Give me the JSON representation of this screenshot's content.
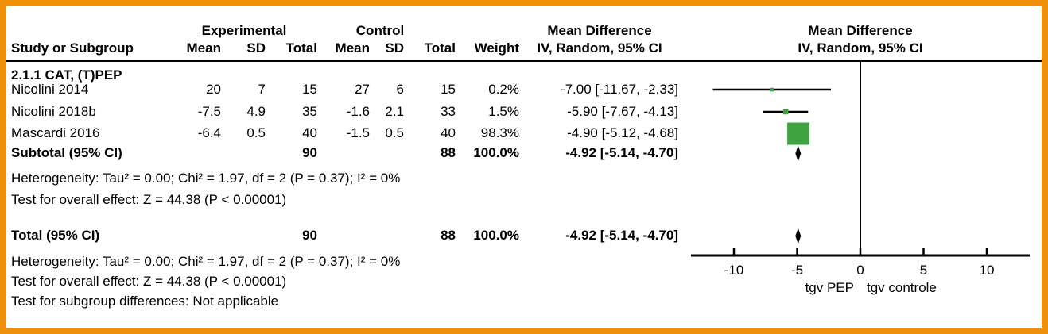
{
  "table": {
    "group_headers": {
      "experimental": "Experimental",
      "control": "Control"
    },
    "columns": {
      "study": "Study or Subgroup",
      "mean": "Mean",
      "sd": "SD",
      "total": "Total",
      "weight": "Weight",
      "md_line1": "Mean Difference",
      "md_line2": "IV, Random, 95% CI"
    },
    "subgroup_label": "2.1.1 CAT, (T)PEP",
    "rows": [
      {
        "study": "Nicolini 2014",
        "mean_exp": "20",
        "sd_exp": "7",
        "total_exp": "15",
        "mean_ctl": "27",
        "sd_ctl": "6",
        "total_ctl": "15",
        "weight": "0.2%",
        "md_ci": "-7.00 [-11.67, -2.33]"
      },
      {
        "study": "Nicolini 2018b",
        "mean_exp": "-7.5",
        "sd_exp": "4.9",
        "total_exp": "35",
        "mean_ctl": "-1.6",
        "sd_ctl": "2.1",
        "total_ctl": "33",
        "weight": "1.5%",
        "md_ci": "-5.90 [-7.67, -4.13]"
      },
      {
        "study": "Mascardi 2016",
        "mean_exp": "-6.4",
        "sd_exp": "0.5",
        "total_exp": "40",
        "mean_ctl": "-1.5",
        "sd_ctl": "0.5",
        "total_ctl": "40",
        "weight": "98.3%",
        "md_ci": "-4.90 [-5.12, -4.68]"
      }
    ],
    "subtotal": {
      "label": "Subtotal (95% CI)",
      "total_exp": "90",
      "total_ctl": "88",
      "weight": "100.0%",
      "md_ci": "-4.92 [-5.14, -4.70]"
    },
    "heterogeneity_subgroup": "Heterogeneity: Tau² = 0.00; Chi² = 1.97, df = 2 (P = 0.37); I² = 0%",
    "test_subgroup": "Test for overall effect: Z = 44.38 (P < 0.00001)",
    "total": {
      "label": "Total (95% CI)",
      "total_exp": "90",
      "total_ctl": "88",
      "weight": "100.0%",
      "md_ci": "-4.92 [-5.14, -4.70]"
    },
    "heterogeneity_total": "Heterogeneity: Tau² = 0.00; Chi² = 1.97, df = 2 (P = 0.37); I² = 0%",
    "test_total": "Test for overall effect: Z = 44.38 (P < 0.00001)",
    "subgroup_diff": "Test for subgroup differences: Not applicable"
  },
  "chart_data": {
    "type": "forest",
    "effect_measure": "Mean Difference IV, Random, 95% CI",
    "x_ticks": [
      -10,
      -5,
      0,
      5,
      10
    ],
    "x_range": [
      -13.4,
      13.4
    ],
    "favours_left": "tgv PEP",
    "favours_right": "tgv controle",
    "subgroup": "2.1.1 CAT, (T)PEP",
    "studies": [
      {
        "name": "Nicolini 2014",
        "md": -7.0,
        "ci_low": -11.67,
        "ci_high": -2.33,
        "weight_pct": 0.2
      },
      {
        "name": "Nicolini 2018b",
        "md": -5.9,
        "ci_low": -7.67,
        "ci_high": -4.13,
        "weight_pct": 1.5
      },
      {
        "name": "Mascardi 2016",
        "md": -4.9,
        "ci_low": -5.12,
        "ci_high": -4.68,
        "weight_pct": 98.3
      }
    ],
    "subtotal": {
      "md": -4.92,
      "ci_low": -5.14,
      "ci_high": -4.7
    },
    "total": {
      "md": -4.92,
      "ci_low": -5.14,
      "ci_high": -4.7
    },
    "marker_color": "#3fa43f",
    "line_color": "#000000"
  },
  "colors": {
    "border": "#f0910b",
    "marker_green": "#3fa43f",
    "text": "#000000"
  }
}
